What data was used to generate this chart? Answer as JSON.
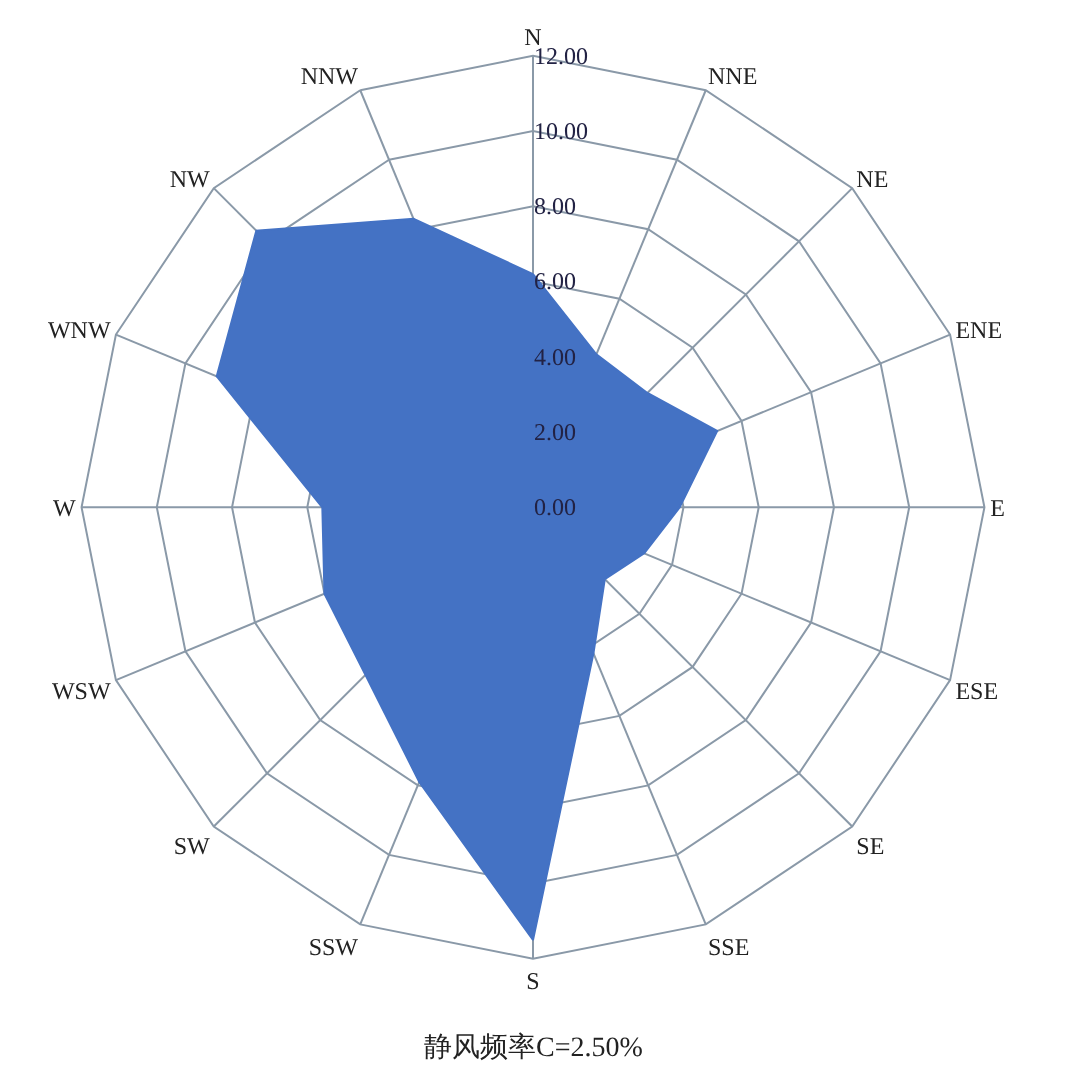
{
  "chart_data": {
    "type": "radar",
    "categories": [
      "N",
      "NNE",
      "NE",
      "ENE",
      "E",
      "ESE",
      "SE",
      "SSE",
      "S",
      "SSW",
      "SW",
      "WSW",
      "W",
      "WNW",
      "NW",
      "NNW"
    ],
    "series": [
      {
        "color": "#4472c4",
        "values": [
          6.2,
          4.4,
          4.3,
          5.3,
          3.9,
          3.2,
          2.7,
          4.2,
          11.5,
          7.9,
          6.3,
          6.0,
          5.6,
          9.1,
          10.4,
          8.3
        ]
      }
    ],
    "ylim": [
      0,
      12
    ],
    "yticks": [
      {
        "value": 0,
        "label": "0.00"
      },
      {
        "value": 2,
        "label": "2.00"
      },
      {
        "value": 4,
        "label": "4.00"
      },
      {
        "value": 6,
        "label": "6.00"
      },
      {
        "value": 8,
        "label": "8.00"
      },
      {
        "value": 10,
        "label": "10.00"
      },
      {
        "value": 12,
        "label": "12.00"
      }
    ],
    "grid": true,
    "marker": "none",
    "annotations": [
      "静风频率C=2.50%"
    ]
  }
}
